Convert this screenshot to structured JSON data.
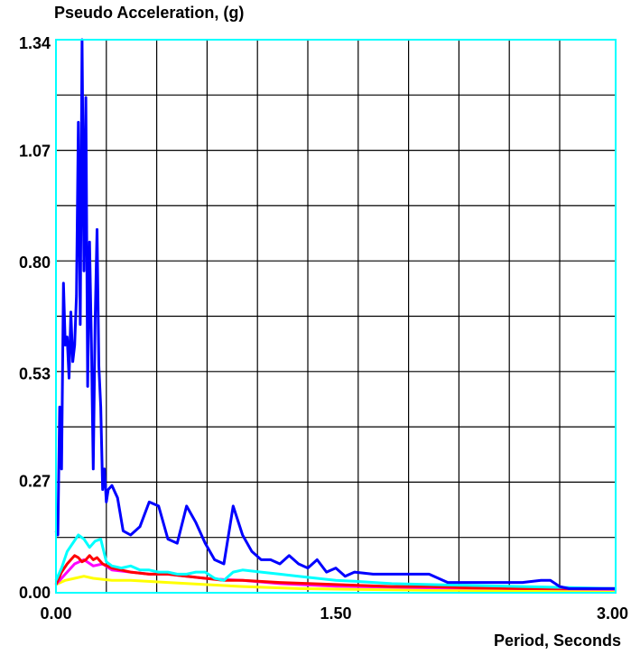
{
  "chart_data": {
    "type": "line",
    "title": "",
    "ylabel": "Pseudo Acceleration, (g)",
    "xlabel": "Period, Seconds",
    "xlim": [
      0,
      3.0
    ],
    "ylim": [
      0,
      1.34
    ],
    "x_ticks": [
      "0.00",
      "1.50",
      "3.00"
    ],
    "x_tick_values": [
      0,
      1.5,
      3.0
    ],
    "y_ticks": [
      "0.00",
      "0.27",
      "0.53",
      "0.80",
      "1.07",
      "1.34"
    ],
    "y_tick_values": [
      0,
      0.27,
      0.53,
      0.8,
      1.07,
      1.34
    ],
    "x_grid_values": [
      0,
      0.27,
      0.54,
      0.81,
      1.08,
      1.35,
      1.62,
      1.89,
      2.16,
      2.43,
      2.7,
      3.0
    ],
    "y_grid_values": [
      0,
      0.134,
      0.268,
      0.402,
      0.536,
      0.67,
      0.804,
      0.938,
      1.072,
      1.206,
      1.34
    ],
    "grid": true,
    "plot_border_color": "#00ffff",
    "grid_color": "#000000",
    "series": [
      {
        "color": "#ffff00",
        "x": [
          0.0,
          0.05,
          0.1,
          0.15,
          0.2,
          0.3,
          0.4,
          0.6,
          0.8,
          1.0,
          1.3,
          1.6,
          2.0,
          2.5,
          3.0
        ],
        "y": [
          0.02,
          0.03,
          0.035,
          0.04,
          0.035,
          0.03,
          0.03,
          0.025,
          0.02,
          0.015,
          0.01,
          0.008,
          0.006,
          0.005,
          0.004
        ]
      },
      {
        "color": "#ff00ff",
        "x": [
          0.0,
          0.05,
          0.1,
          0.15,
          0.2,
          0.25,
          0.3,
          0.4,
          0.5,
          0.6,
          0.7,
          0.8,
          0.9,
          1.0,
          1.2,
          1.5,
          2.0,
          2.5,
          3.0
        ],
        "y": [
          0.02,
          0.045,
          0.07,
          0.08,
          0.065,
          0.07,
          0.055,
          0.05,
          0.045,
          0.045,
          0.04,
          0.035,
          0.032,
          0.03,
          0.022,
          0.016,
          0.012,
          0.01,
          0.008
        ]
      },
      {
        "color": "#ff0000",
        "x": [
          0.0,
          0.03,
          0.06,
          0.08,
          0.1,
          0.12,
          0.14,
          0.16,
          0.18,
          0.2,
          0.22,
          0.25,
          0.3,
          0.35,
          0.4,
          0.5,
          0.6,
          0.7,
          0.8,
          0.9,
          1.0,
          1.2,
          1.5,
          1.8,
          2.0,
          2.2,
          2.5,
          2.8,
          3.0
        ],
        "y": [
          0.02,
          0.05,
          0.07,
          0.08,
          0.09,
          0.085,
          0.075,
          0.08,
          0.09,
          0.08,
          0.085,
          0.07,
          0.06,
          0.055,
          0.05,
          0.045,
          0.045,
          0.04,
          0.035,
          0.03,
          0.03,
          0.025,
          0.02,
          0.015,
          0.015,
          0.012,
          0.01,
          0.01,
          0.01
        ]
      },
      {
        "color": "#00ffff",
        "x": [
          0.0,
          0.03,
          0.06,
          0.09,
          0.12,
          0.15,
          0.18,
          0.21,
          0.24,
          0.27,
          0.3,
          0.35,
          0.4,
          0.45,
          0.5,
          0.55,
          0.6,
          0.65,
          0.7,
          0.75,
          0.8,
          0.85,
          0.9,
          0.95,
          1.0,
          1.1,
          1.2,
          1.3,
          1.4,
          1.5,
          1.6,
          1.8,
          2.0,
          2.2,
          2.5,
          2.8,
          3.0
        ],
        "y": [
          0.03,
          0.06,
          0.1,
          0.12,
          0.14,
          0.13,
          0.11,
          0.125,
          0.13,
          0.075,
          0.065,
          0.06,
          0.065,
          0.055,
          0.055,
          0.05,
          0.05,
          0.045,
          0.045,
          0.05,
          0.05,
          0.035,
          0.03,
          0.05,
          0.055,
          0.05,
          0.045,
          0.04,
          0.035,
          0.03,
          0.028,
          0.022,
          0.02,
          0.018,
          0.015,
          0.012,
          0.01
        ]
      },
      {
        "color": "#0000ff",
        "x": [
          0.0,
          0.01,
          0.02,
          0.03,
          0.04,
          0.05,
          0.06,
          0.07,
          0.08,
          0.09,
          0.1,
          0.11,
          0.12,
          0.13,
          0.14,
          0.15,
          0.16,
          0.17,
          0.18,
          0.19,
          0.2,
          0.21,
          0.22,
          0.23,
          0.24,
          0.25,
          0.26,
          0.27,
          0.28,
          0.3,
          0.33,
          0.36,
          0.4,
          0.45,
          0.5,
          0.55,
          0.6,
          0.65,
          0.7,
          0.75,
          0.8,
          0.85,
          0.9,
          0.95,
          1.0,
          1.05,
          1.1,
          1.15,
          1.2,
          1.25,
          1.3,
          1.35,
          1.4,
          1.45,
          1.5,
          1.55,
          1.6,
          1.7,
          1.8,
          1.9,
          2.0,
          2.1,
          2.2,
          2.3,
          2.4,
          2.5,
          2.6,
          2.65,
          2.7,
          2.75,
          2.8,
          2.9,
          3.0
        ],
        "y": [
          0.15,
          0.14,
          0.45,
          0.3,
          0.75,
          0.6,
          0.62,
          0.52,
          0.68,
          0.56,
          0.6,
          0.72,
          1.14,
          0.65,
          1.34,
          0.78,
          1.2,
          0.5,
          0.85,
          0.6,
          0.3,
          0.66,
          0.88,
          0.55,
          0.45,
          0.25,
          0.3,
          0.22,
          0.25,
          0.26,
          0.23,
          0.15,
          0.14,
          0.16,
          0.22,
          0.21,
          0.13,
          0.12,
          0.21,
          0.17,
          0.12,
          0.08,
          0.07,
          0.21,
          0.14,
          0.1,
          0.08,
          0.08,
          0.07,
          0.09,
          0.07,
          0.06,
          0.08,
          0.05,
          0.06,
          0.04,
          0.05,
          0.045,
          0.045,
          0.045,
          0.045,
          0.025,
          0.025,
          0.025,
          0.025,
          0.025,
          0.03,
          0.03,
          0.015,
          0.01,
          0.01,
          0.01,
          0.01
        ]
      }
    ]
  }
}
